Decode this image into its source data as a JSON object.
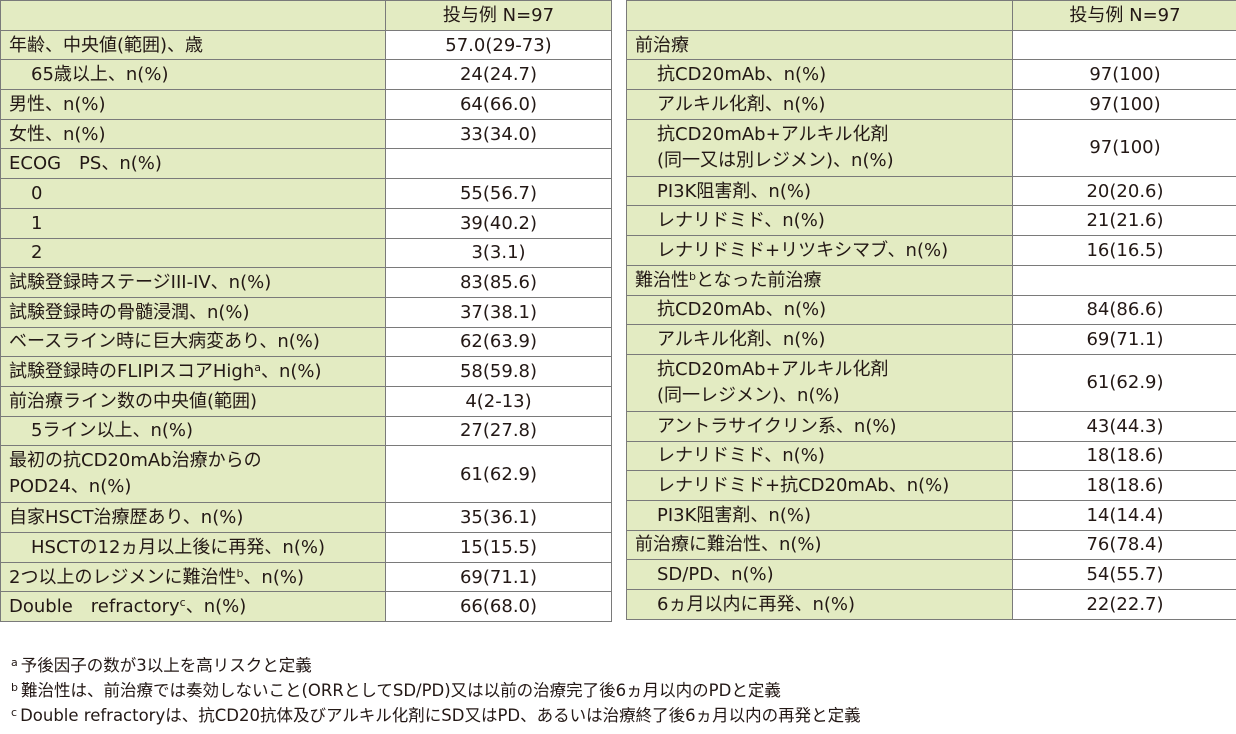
{
  "left_table": {
    "header": "投与例 N=97",
    "rows": [
      {
        "label": "年齢、中央値(範囲)、歳",
        "value": "57.0(29-73)"
      },
      {
        "label": "65歳以上、n(%)",
        "value": "24(24.7)"
      },
      {
        "label": "男性、n(%)",
        "value": "64(66.0)"
      },
      {
        "label": "女性、n(%)",
        "value": "33(34.0)"
      },
      {
        "label": "ECOG　PS、n(%)",
        "value": ""
      },
      {
        "label": "0",
        "value": "55(56.7)"
      },
      {
        "label": "1",
        "value": "39(40.2)"
      },
      {
        "label": "2",
        "value": "3(3.1)"
      },
      {
        "label": "試験登録時ステージIII-IV、n(%)",
        "value": "83(85.6)"
      },
      {
        "label": "試験登録時の骨髄浸潤、n(%)",
        "value": "37(38.1)"
      },
      {
        "label": "ベースライン時に巨大病変あり、n(%)",
        "value": "62(63.9)"
      },
      {
        "label_pre": "試験登録時のFLIPIスコアHigh",
        "label_sup": "a",
        "label_post": "、n(%)",
        "value": "58(59.8)"
      },
      {
        "label": "前治療ライン数の中央値(範囲)",
        "value": "4(2-13)"
      },
      {
        "label": "5ライン以上、n(%)",
        "value": "27(27.8)"
      },
      {
        "label_line1": "最初の抗CD20mAb治療からの",
        "label_line2": "POD24、n(%)",
        "value": "61(62.9)"
      },
      {
        "label": "自家HSCT治療歴あり、n(%)",
        "value": "35(36.1)"
      },
      {
        "label": "HSCTの12ヵ月以上後に再発、n(%)",
        "value": "15(15.5)"
      },
      {
        "label_pre": "2つ以上のレジメンに難治性",
        "label_sup": "b",
        "label_post": "、n(%)",
        "value": "69(71.1)"
      },
      {
        "label_pre": "Double　refractory",
        "label_sup": "c",
        "label_post": "、n(%)",
        "value": "66(68.0)"
      }
    ]
  },
  "right_table": {
    "header": "投与例 N=97",
    "rows": [
      {
        "label": "前治療",
        "value": ""
      },
      {
        "label": "抗CD20mAb、n(%)",
        "value": "97(100)"
      },
      {
        "label": "アルキル化剤、n(%)",
        "value": "97(100)"
      },
      {
        "label_line1": "抗CD20mAb+アルキル化剤",
        "label_line2": "(同一又は別レジメン)、n(%)",
        "value": "97(100)"
      },
      {
        "label": "PI3K阻害剤、n(%)",
        "value": "20(20.6)"
      },
      {
        "label": "レナリドミド、n(%)",
        "value": "21(21.6)"
      },
      {
        "label": "レナリドミド+リツキシマブ、n(%)",
        "value": "16(16.5)"
      },
      {
        "label_pre": "難治性",
        "label_sup": "b",
        "label_post": "となった前治療",
        "value": ""
      },
      {
        "label": "抗CD20mAb、n(%)",
        "value": "84(86.6)"
      },
      {
        "label": "アルキル化剤、n(%)",
        "value": "69(71.1)"
      },
      {
        "label_line1": "抗CD20mAb+アルキル化剤",
        "label_line2": "(同一レジメン)、n(%)",
        "value": "61(62.9)"
      },
      {
        "label": "アントラサイクリン系、n(%)",
        "value": "43(44.3)"
      },
      {
        "label": "レナリドミド、n(%)",
        "value": "18(18.6)"
      },
      {
        "label": "レナリドミド+抗CD20mAb、n(%)",
        "value": "18(18.6)"
      },
      {
        "label": "PI3K阻害剤、n(%)",
        "value": "14(14.4)"
      },
      {
        "label": "前治療に難治性、n(%)",
        "value": "76(78.4)"
      },
      {
        "label": "SD/PD、n(%)",
        "value": "54(55.7)"
      },
      {
        "label": "6ヵ月以内に再発、n(%)",
        "value": "22(22.7)"
      }
    ]
  },
  "footnotes": [
    {
      "mark": "a",
      "text": "予後因子の数が3以上を高リスクと定義"
    },
    {
      "mark": "b",
      "text": "難治性は、前治療では奏効しないこと(ORRとしてSD/PD)又は以前の治療完了後6ヵ月以内のPDと定義"
    },
    {
      "mark": "c",
      "text": "Double refractoryは、抗CD20抗体及びアルキル化剤にSD又はPD、あるいは治療終了後6ヵ月以内の再発と定義"
    }
  ]
}
